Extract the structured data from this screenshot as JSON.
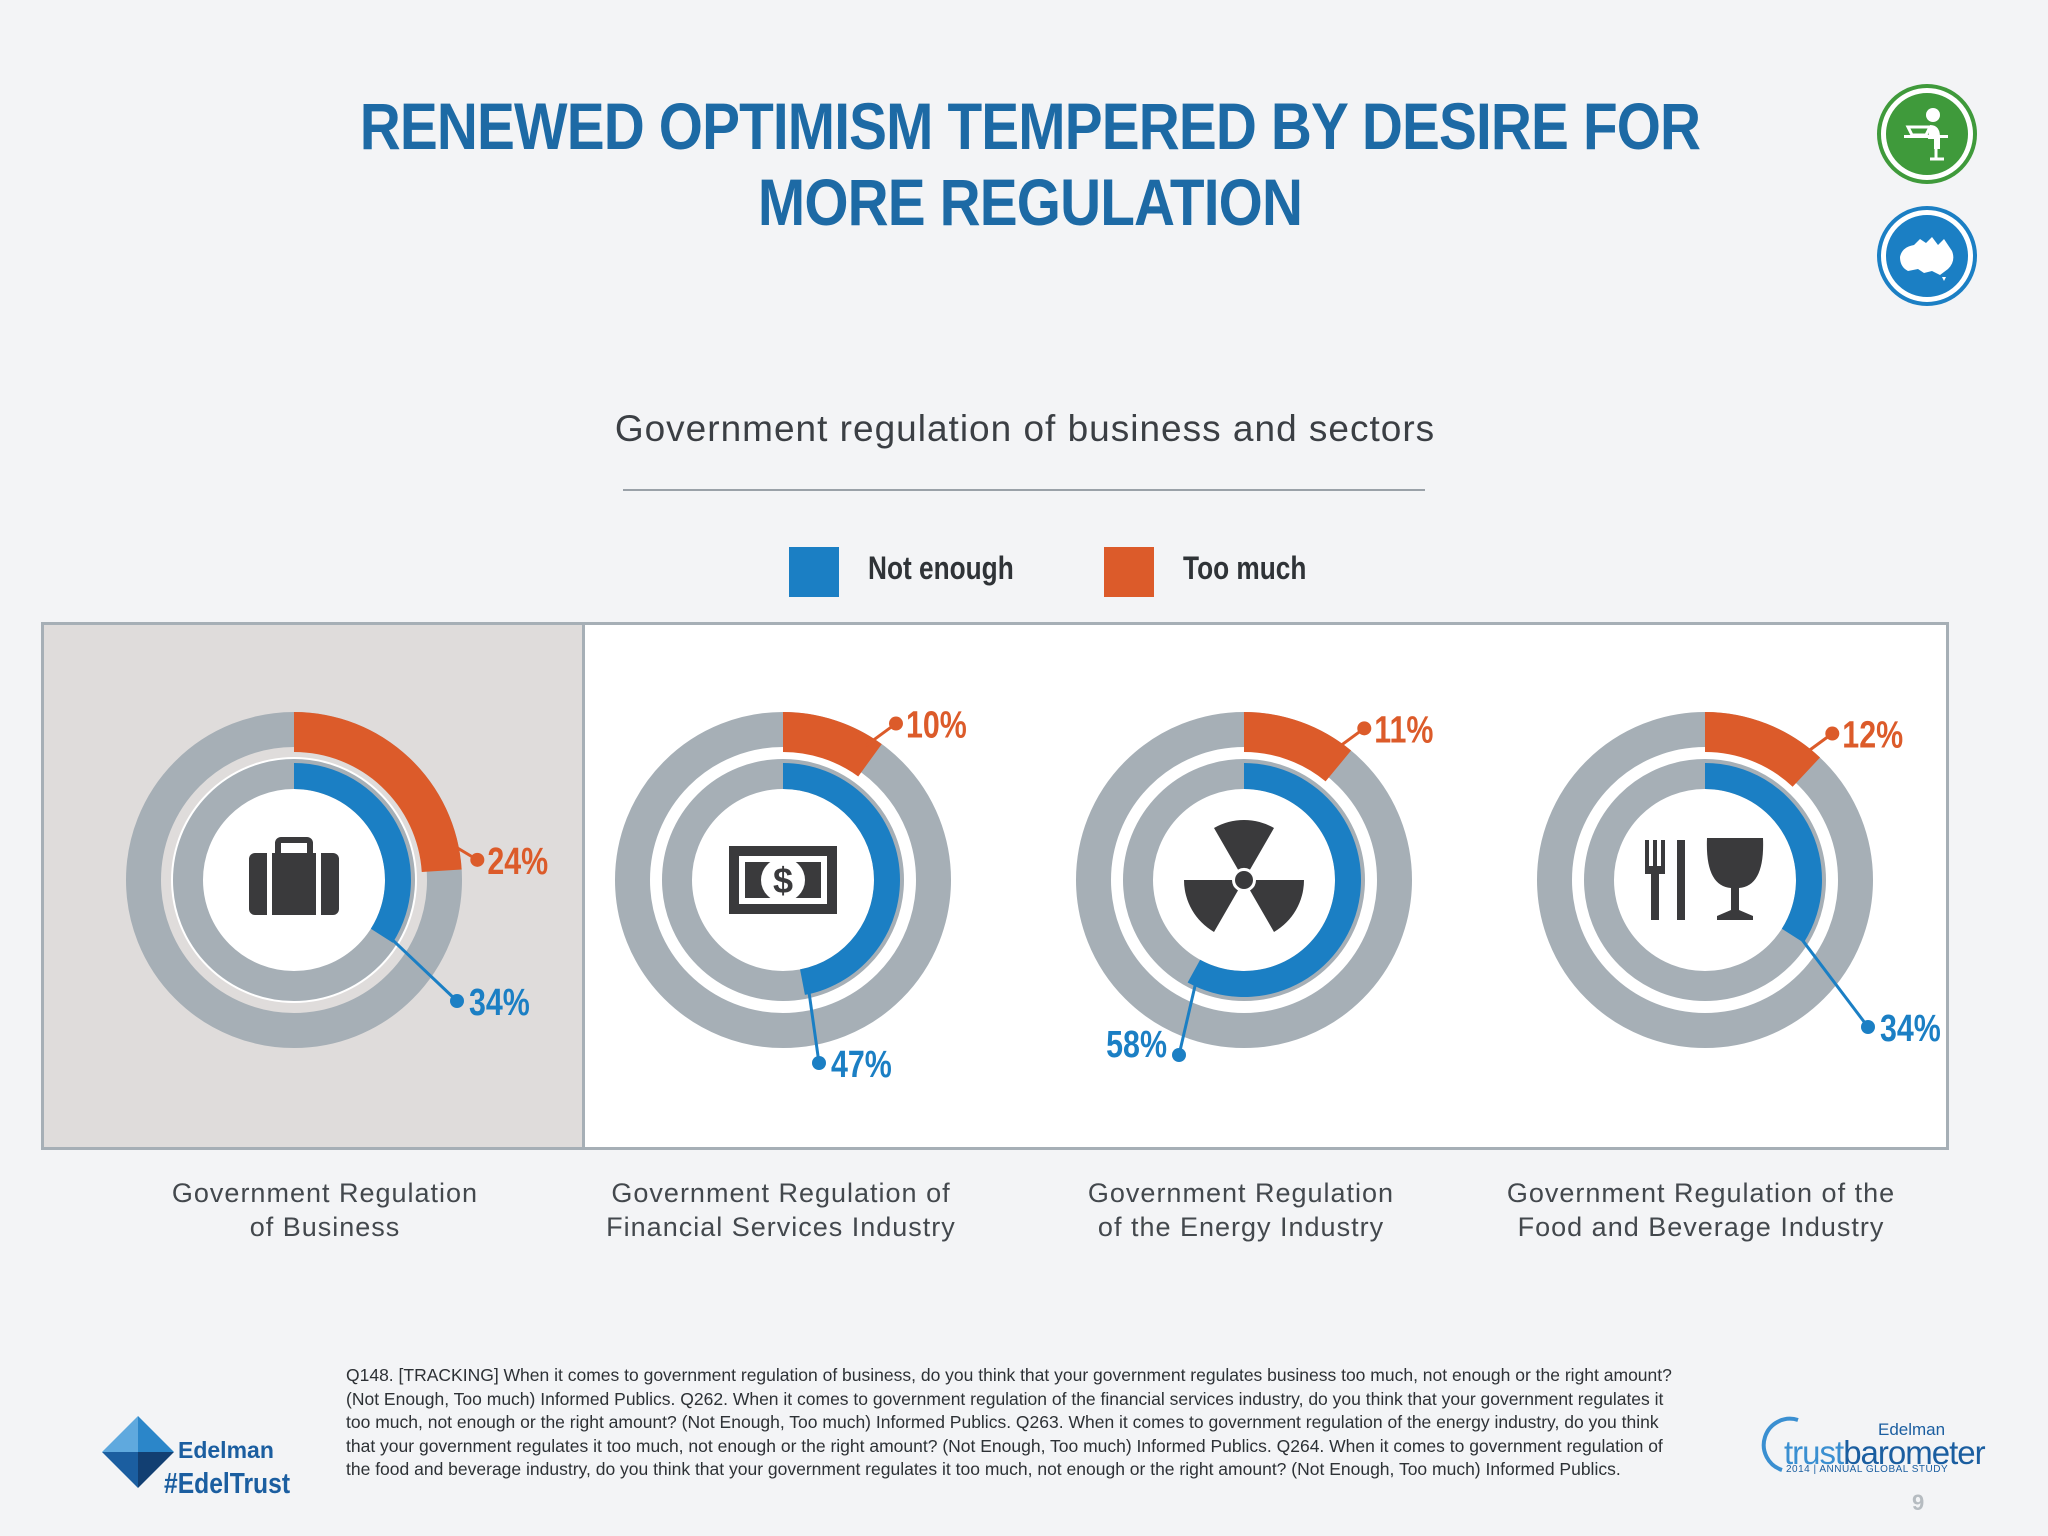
{
  "header": {
    "title": "RENEWED OPTIMISM TEMPERED BY DESIRE FOR MORE REGULATION"
  },
  "badges": [
    {
      "icon": "person-at-computer-icon",
      "color": "#3f9a3b"
    },
    {
      "icon": "australia-map-icon",
      "color": "#1b7fc4"
    }
  ],
  "chart_data": {
    "type": "donut",
    "title": "Government regulation of business and sectors",
    "series": [
      {
        "name": "Not enough",
        "color": "#1b7fc4"
      },
      {
        "name": "Too much",
        "color": "#dc5b2a"
      }
    ],
    "categories": [
      "Government Regulation of Business",
      "Government Regulation of Financial Services Industry",
      "Government Regulation of the Energy Industry",
      "Government Regulation of the Food and Beverage Industry"
    ],
    "values": [
      {
        "not_enough": 34,
        "too_much": 24,
        "not_enough_label": "34%",
        "too_much_label": "24%",
        "icon": "briefcase-icon"
      },
      {
        "not_enough": 47,
        "too_much": 10,
        "not_enough_label": "47%",
        "too_much_label": "10%",
        "icon": "dollar-bill-icon"
      },
      {
        "not_enough": 58,
        "too_much": 11,
        "not_enough_label": "58%",
        "too_much_label": "11%",
        "icon": "radiation-icon"
      },
      {
        "not_enough": 34,
        "too_much": 12,
        "not_enough_label": "34%",
        "too_much_label": "12%",
        "icon": "fork-knife-glass-icon"
      }
    ],
    "highlighted_category": 0,
    "legend": "top"
  },
  "labels": {
    "cat0_line1": "Government Regulation",
    "cat0_line2": "of Business",
    "cat1_line1": "Government Regulation of",
    "cat1_line2": "Financial Services Industry",
    "cat2_line1": "Government Regulation",
    "cat2_line2": "of the Energy Industry",
    "cat3_line1": "Government Regulation of the",
    "cat3_line2": "Food and Beverage Industry"
  },
  "footnote": "Q148. [TRACKING] When it comes to government regulation of business, do you think that your government regulates business too much, not enough or the right amount? (Not Enough, Too much) Informed Publics. Q262. When it comes to government regulation of the financial services industry, do you think that your government regulates it too much, not enough or the right amount? (Not Enough, Too much) Informed Publics. Q263. When it comes to government regulation of the energy industry, do you think that your government regulates it too much, not enough or the right amount? (Not Enough, Too much) Informed Publics. Q264. When it comes to government regulation of the food and beverage industry, do you think that your government regulates it too much, not enough or the right amount? (Not Enough, Too much) Informed Publics.",
  "branding": {
    "edelman": "Edelman",
    "hashtag": "#EdelTrust",
    "tb_edelman": "Edelman",
    "tb_trust": "trust",
    "tb_barometer": "barometer",
    "tb_sub": "2014 | ANNUAL GLOBAL STUDY",
    "page": "9"
  }
}
